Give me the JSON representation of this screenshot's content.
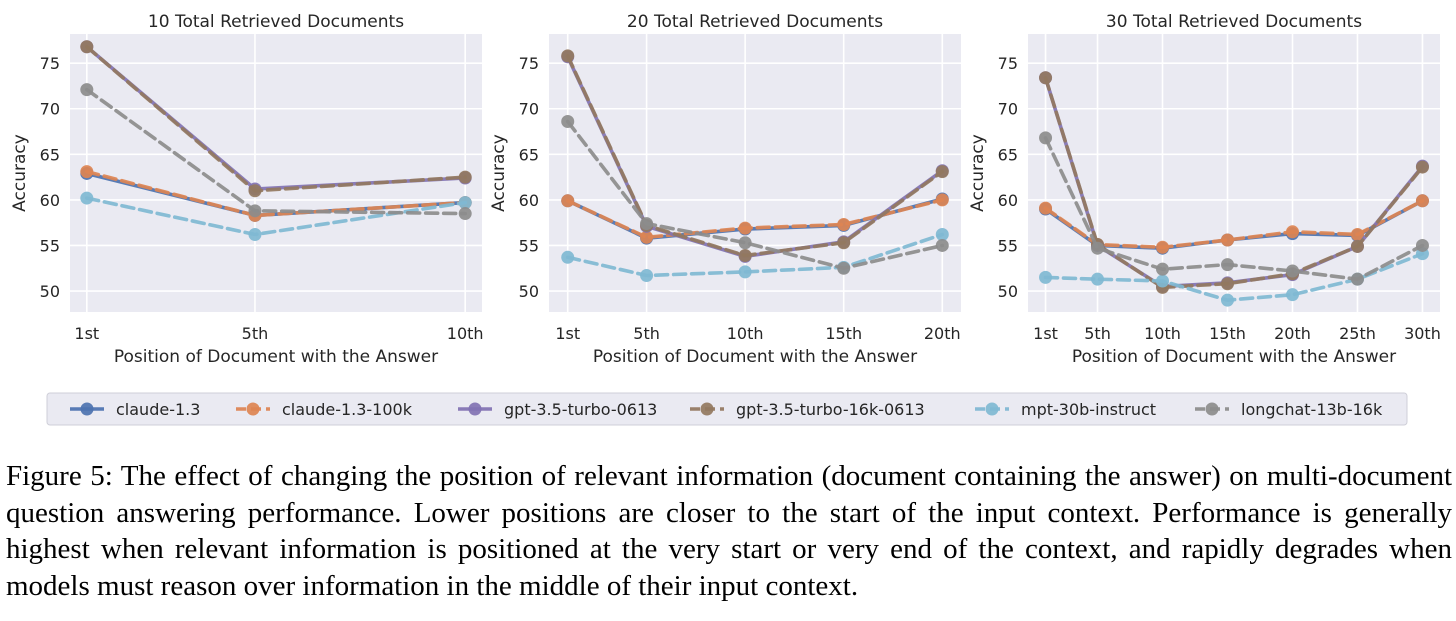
{
  "figure": {
    "caption": "Figure 5: The effect of changing the position of relevant information (document containing the answer) on multi-document question answering performance. Lower positions are closer to the start of the input context. Performance is generally highest when relevant information is positioned at the very start or very end of the context, and rapidly degrades when models must reason over information in the middle of their input context."
  },
  "legend": {
    "placement": "bottom-center",
    "items": [
      {
        "name": "claude-1.3",
        "color": "#4c72b0",
        "dashed": false
      },
      {
        "name": "claude-1.3-100k",
        "color": "#dd8452",
        "dashed": true
      },
      {
        "name": "gpt-3.5-turbo-0613",
        "color": "#8172b3",
        "dashed": false
      },
      {
        "name": "gpt-3.5-turbo-16k-0613",
        "color": "#937860",
        "dashed": true
      },
      {
        "name": "mpt-30b-instruct",
        "color": "#7fb8d3",
        "dashed": true
      },
      {
        "name": "longchat-13b-16k",
        "color": "#8c8c8c",
        "dashed": true
      }
    ]
  },
  "chart_data": [
    {
      "type": "line",
      "title": "10 Total Retrieved Documents",
      "xlabel": "Position of Document with the Answer",
      "ylabel": "Accuracy",
      "x": [
        1,
        5,
        10
      ],
      "xticklabels": [
        "1st",
        "5th",
        "10th"
      ],
      "xlim": [
        0.6,
        10.4
      ],
      "ylim": [
        47.7,
        78.2
      ],
      "yticks": [
        50,
        55,
        60,
        65,
        70,
        75
      ],
      "grid": true,
      "series": [
        {
          "name": "claude-1.3",
          "values": [
            62.9,
            58.3,
            59.7
          ]
        },
        {
          "name": "claude-1.3-100k",
          "values": [
            63.1,
            58.3,
            59.7
          ]
        },
        {
          "name": "gpt-3.5-turbo-0613",
          "values": [
            76.8,
            61.2,
            62.4
          ]
        },
        {
          "name": "gpt-3.5-turbo-16k-0613",
          "values": [
            76.8,
            61.0,
            62.5
          ]
        },
        {
          "name": "mpt-30b-instruct",
          "values": [
            60.2,
            56.2,
            59.7
          ]
        },
        {
          "name": "longchat-13b-16k",
          "values": [
            72.1,
            58.8,
            58.5
          ]
        }
      ]
    },
    {
      "type": "line",
      "title": "20 Total Retrieved Documents",
      "xlabel": "Position of Document with the Answer",
      "ylabel": "Accuracy",
      "x": [
        1,
        5,
        10,
        15,
        20
      ],
      "xticklabels": [
        "1st",
        "5th",
        "10th",
        "15th",
        "20th"
      ],
      "xlim": [
        0.05,
        20.95
      ],
      "ylim": [
        47.7,
        78.2
      ],
      "yticks": [
        50,
        55,
        60,
        65,
        70,
        75
      ],
      "grid": true,
      "series": [
        {
          "name": "claude-1.3",
          "values": [
            59.9,
            55.8,
            56.8,
            57.2,
            60.1
          ]
        },
        {
          "name": "claude-1.3-100k",
          "values": [
            59.9,
            55.9,
            56.9,
            57.3,
            60.0
          ]
        },
        {
          "name": "gpt-3.5-turbo-0613",
          "values": [
            75.7,
            57.1,
            53.8,
            55.4,
            63.2
          ]
        },
        {
          "name": "gpt-3.5-turbo-16k-0613",
          "values": [
            75.8,
            57.2,
            53.9,
            55.3,
            63.1
          ]
        },
        {
          "name": "mpt-30b-instruct",
          "values": [
            53.7,
            51.7,
            52.1,
            52.6,
            56.2
          ]
        },
        {
          "name": "longchat-13b-16k",
          "values": [
            68.6,
            57.4,
            55.3,
            52.5,
            55.0
          ]
        }
      ]
    },
    {
      "type": "line",
      "title": "30 Total Retrieved Documents",
      "xlabel": "Position of Document with the Answer",
      "ylabel": "Accuracy",
      "x": [
        1,
        5,
        10,
        15,
        20,
        25,
        30
      ],
      "xticklabels": [
        "1st",
        "5th",
        "10th",
        "15th",
        "20th",
        "25th",
        "30th"
      ],
      "xlim": [
        -0.35,
        31.35
      ],
      "ylim": [
        47.7,
        78.2
      ],
      "yticks": [
        50,
        55,
        60,
        65,
        70,
        75
      ],
      "grid": true,
      "series": [
        {
          "name": "claude-1.3",
          "values": [
            59.0,
            55.0,
            54.7,
            55.6,
            56.3,
            56.1,
            59.9
          ]
        },
        {
          "name": "claude-1.3-100k",
          "values": [
            59.1,
            55.1,
            54.8,
            55.6,
            56.5,
            56.2,
            59.9
          ]
        },
        {
          "name": "gpt-3.5-turbo-0613",
          "values": [
            73.4,
            55.0,
            50.5,
            50.9,
            51.8,
            54.9,
            63.7
          ]
        },
        {
          "name": "gpt-3.5-turbo-16k-0613",
          "values": [
            73.4,
            55.1,
            50.4,
            50.8,
            51.9,
            54.9,
            63.6
          ]
        },
        {
          "name": "mpt-30b-instruct",
          "values": [
            51.5,
            51.3,
            51.1,
            49.0,
            49.6,
            51.3,
            54.1
          ]
        },
        {
          "name": "longchat-13b-16k",
          "values": [
            66.8,
            54.7,
            52.4,
            52.9,
            52.2,
            51.3,
            55.0
          ]
        }
      ]
    }
  ]
}
